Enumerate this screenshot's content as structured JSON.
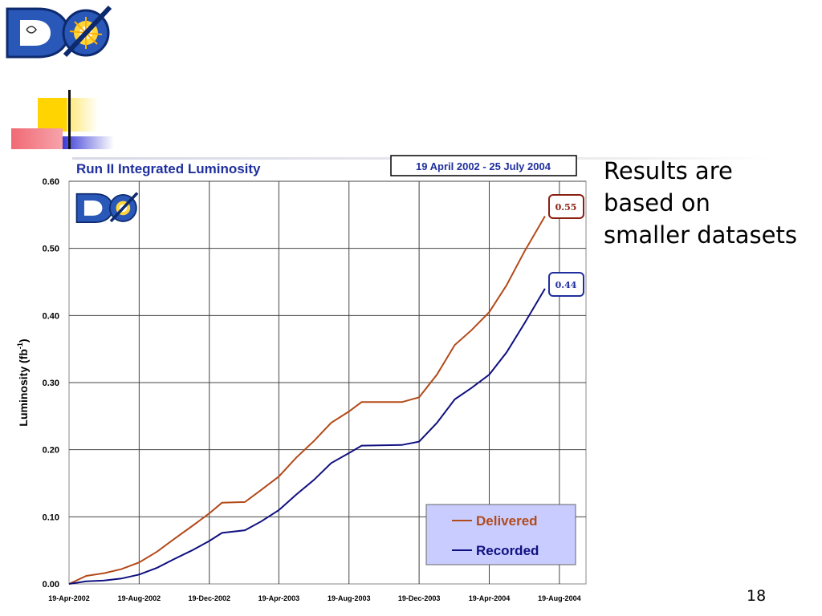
{
  "slide": {
    "side_text": [
      "Results are",
      "based on",
      "smaller datasets"
    ],
    "page_number": "18",
    "logo_text": "DØ"
  },
  "chart_data": {
    "type": "line",
    "title": "Run II Integrated Luminosity",
    "date_range": "19 April 2002 - 25 July 2004",
    "ylabel": "Luminosity (fb",
    "ylabel_sup": "-1",
    "ylabel_close": ")",
    "xlabel": "",
    "ylim": [
      0,
      0.6
    ],
    "y_ticks": [
      "0.00",
      "0.10",
      "0.20",
      "0.30",
      "0.40",
      "0.50",
      "0.60"
    ],
    "x_ticks": [
      "19-Apr-2002",
      "19-Aug-2002",
      "19-Dec-2002",
      "19-Apr-2003",
      "19-Aug-2003",
      "19-Dec-2003",
      "19-Apr-2004",
      "19-Aug-2004"
    ],
    "grid": true,
    "legend_position": "bottom-right",
    "x_months_since_2002_04_19": null,
    "series": [
      {
        "name": "Delivered",
        "color": "#b34a1a",
        "final_label": "0.55",
        "points": [
          [
            "19-Apr-2002",
            0.0
          ],
          [
            "19-May-2002",
            0.012
          ],
          [
            "19-Jun-2002",
            0.016
          ],
          [
            "19-Jul-2002",
            0.022
          ],
          [
            "19-Aug-2002",
            0.032
          ],
          [
            "19-Sep-2002",
            0.048
          ],
          [
            "19-Oct-2002",
            0.067
          ],
          [
            "19-Nov-2002",
            0.086
          ],
          [
            "19-Dec-2002",
            0.105
          ],
          [
            "10-Jan-2003",
            0.121
          ],
          [
            "19-Feb-2003",
            0.122
          ],
          [
            "19-Mar-2003",
            0.14
          ],
          [
            "19-Apr-2003",
            0.16
          ],
          [
            "19-May-2003",
            0.188
          ],
          [
            "19-Jun-2003",
            0.213
          ],
          [
            "19-Jul-2003",
            0.24
          ],
          [
            "19-Aug-2003",
            0.257
          ],
          [
            "10-Sep-2003",
            0.271
          ],
          [
            "19-Nov-2003",
            0.271
          ],
          [
            "19-Dec-2003",
            0.278
          ],
          [
            "19-Jan-2004",
            0.312
          ],
          [
            "19-Feb-2004",
            0.356
          ],
          [
            "19-Mar-2004",
            0.378
          ],
          [
            "19-Apr-2004",
            0.405
          ],
          [
            "19-May-2004",
            0.445
          ],
          [
            "19-Jun-2004",
            0.495
          ],
          [
            "25-Jul-2004",
            0.548
          ]
        ]
      },
      {
        "name": "Recorded",
        "color": "#101080",
        "final_label": "0.44",
        "points": [
          [
            "19-Apr-2002",
            0.0
          ],
          [
            "19-May-2002",
            0.004
          ],
          [
            "19-Jun-2002",
            0.005
          ],
          [
            "19-Jul-2002",
            0.008
          ],
          [
            "19-Aug-2002",
            0.014
          ],
          [
            "19-Sep-2002",
            0.024
          ],
          [
            "19-Oct-2002",
            0.037
          ],
          [
            "19-Nov-2002",
            0.05
          ],
          [
            "19-Dec-2002",
            0.064
          ],
          [
            "10-Jan-2003",
            0.076
          ],
          [
            "19-Feb-2003",
            0.08
          ],
          [
            "19-Mar-2003",
            0.093
          ],
          [
            "19-Apr-2003",
            0.11
          ],
          [
            "19-May-2003",
            0.133
          ],
          [
            "19-Jun-2003",
            0.155
          ],
          [
            "19-Jul-2003",
            0.18
          ],
          [
            "19-Aug-2003",
            0.195
          ],
          [
            "10-Sep-2003",
            0.206
          ],
          [
            "19-Nov-2003",
            0.207
          ],
          [
            "19-Dec-2003",
            0.212
          ],
          [
            "19-Jan-2004",
            0.24
          ],
          [
            "19-Feb-2004",
            0.275
          ],
          [
            "19-Mar-2004",
            0.292
          ],
          [
            "19-Apr-2004",
            0.312
          ],
          [
            "19-May-2004",
            0.345
          ],
          [
            "19-Jun-2004",
            0.388
          ],
          [
            "25-Jul-2004",
            0.44
          ]
        ]
      }
    ]
  }
}
